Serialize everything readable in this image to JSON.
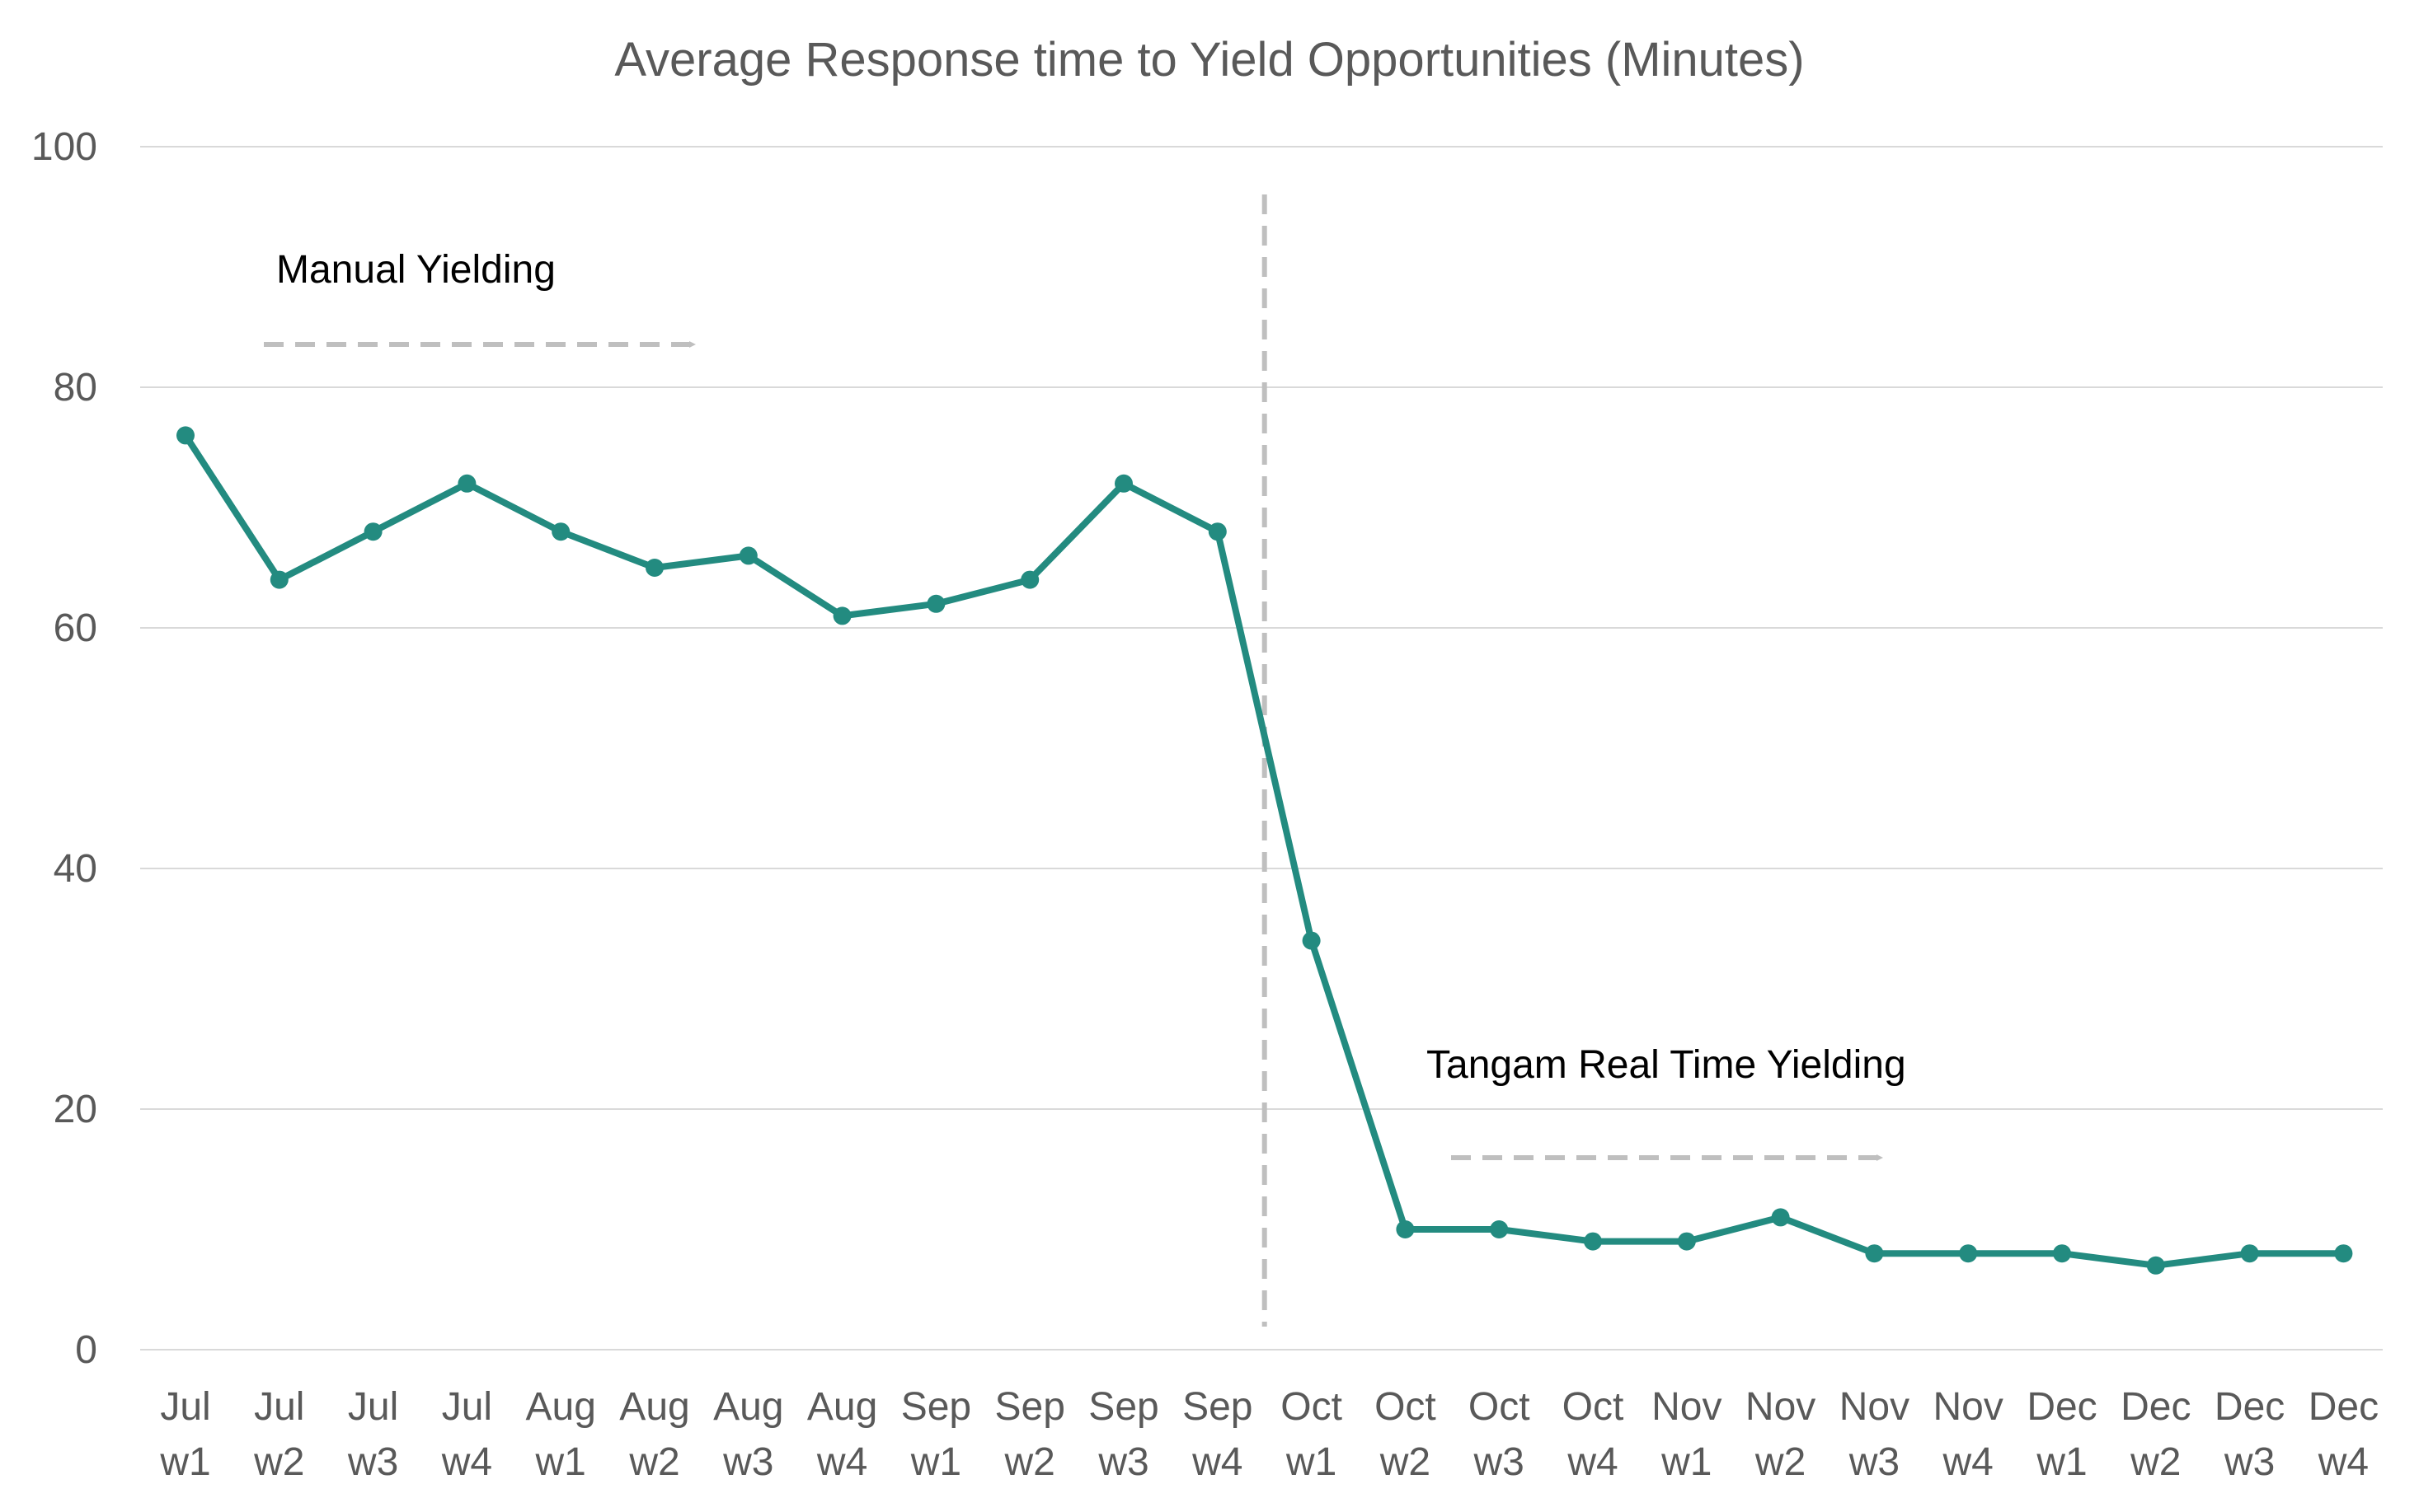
{
  "chart_data": {
    "type": "line",
    "title": "Average Response time to Yield Opportunities (Minutes)",
    "ylim": [
      0,
      100
    ],
    "yticks": [
      0,
      20,
      40,
      60,
      80,
      100
    ],
    "grid": "horizontal",
    "categories": [
      [
        "Jul",
        "w1"
      ],
      [
        "Jul",
        "w2"
      ],
      [
        "Jul",
        "w3"
      ],
      [
        "Jul",
        "w4"
      ],
      [
        "Aug",
        "w1"
      ],
      [
        "Aug",
        "w2"
      ],
      [
        "Aug",
        "w3"
      ],
      [
        "Aug",
        "w4"
      ],
      [
        "Sep",
        "w1"
      ],
      [
        "Sep",
        "w2"
      ],
      [
        "Sep",
        "w3"
      ],
      [
        "Sep",
        "w4"
      ],
      [
        "Oct",
        "w1"
      ],
      [
        "Oct",
        "w2"
      ],
      [
        "Oct",
        "w3"
      ],
      [
        "Oct",
        "w4"
      ],
      [
        "Nov",
        "w1"
      ],
      [
        "Nov",
        "w2"
      ],
      [
        "Nov",
        "w3"
      ],
      [
        "Nov",
        "w4"
      ],
      [
        "Dec",
        "w1"
      ],
      [
        "Dec",
        "w2"
      ],
      [
        "Dec",
        "w3"
      ],
      [
        "Dec",
        "w4"
      ]
    ],
    "series": [
      {
        "values": [
          76,
          64,
          68,
          72,
          68,
          65,
          66,
          61,
          62,
          64,
          72,
          68,
          34,
          10,
          10,
          9,
          9,
          11,
          8,
          8,
          8,
          7,
          8,
          8
        ],
        "color": "#238b80"
      }
    ],
    "annotations": [
      {
        "text": "Manual Yielding"
      },
      {
        "text": "Tangam Real Time Yielding"
      }
    ],
    "divider_between": [
      "Sep w4",
      "Oct w1"
    ],
    "accent_gray": "#bfbfbf"
  }
}
